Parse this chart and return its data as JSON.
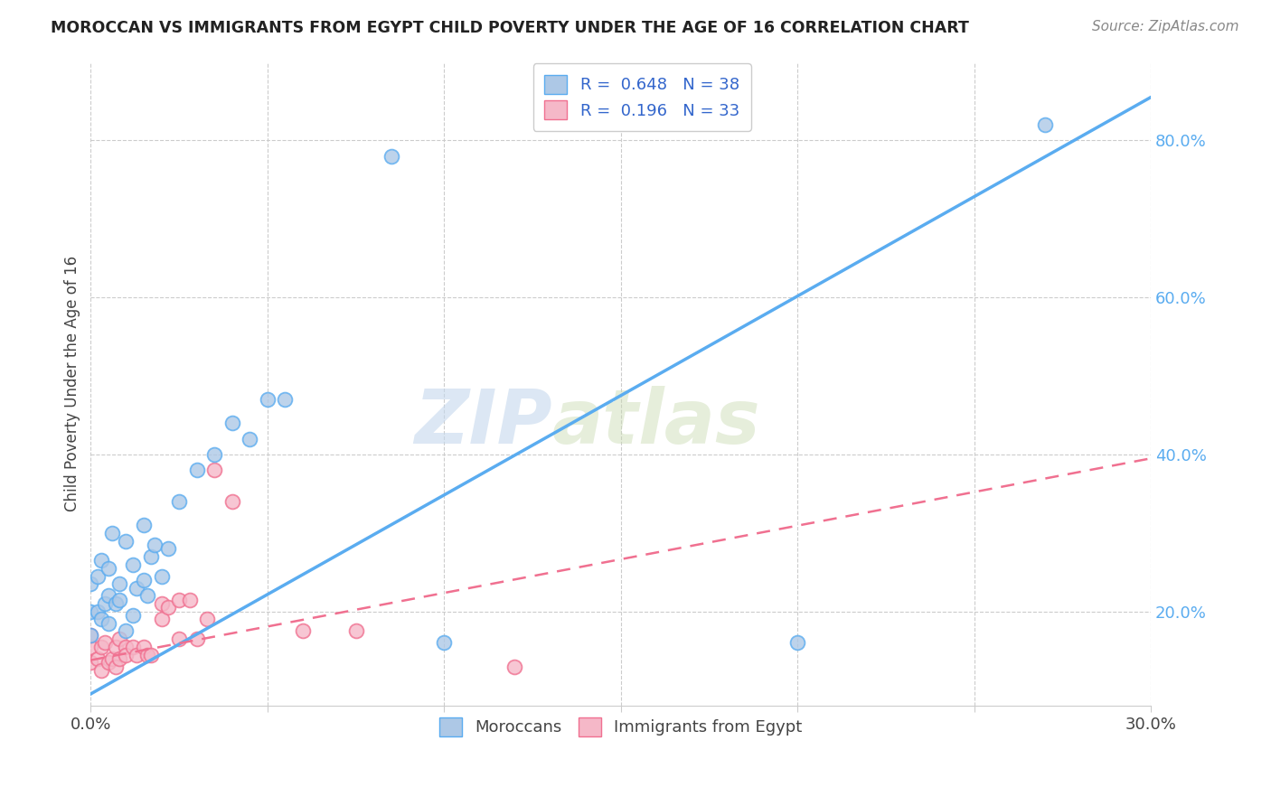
{
  "title": "MOROCCAN VS IMMIGRANTS FROM EGYPT CHILD POVERTY UNDER THE AGE OF 16 CORRELATION CHART",
  "source": "Source: ZipAtlas.com",
  "ylabel": "Child Poverty Under the Age of 16",
  "xlim": [
    0.0,
    0.3
  ],
  "ylim": [
    0.08,
    0.9
  ],
  "xticks": [
    0.0,
    0.05,
    0.1,
    0.15,
    0.2,
    0.25,
    0.3
  ],
  "ytick_right_values": [
    0.2,
    0.4,
    0.6,
    0.8
  ],
  "ytick_right_labels": [
    "20.0%",
    "40.0%",
    "60.0%",
    "80.0%"
  ],
  "r_moroccan": 0.648,
  "n_moroccan": 38,
  "r_egypt": 0.196,
  "n_egypt": 33,
  "color_moroccan": "#adc8e6",
  "color_egypt": "#f5b8c8",
  "line_moroccan": "#5aacf0",
  "line_egypt": "#f07090",
  "watermark_zip": "ZIP",
  "watermark_atlas": "atlas",
  "legend_labels": [
    "Moroccans",
    "Immigrants from Egypt"
  ],
  "moroccan_line_x": [
    0.0,
    0.3
  ],
  "moroccan_line_y": [
    0.095,
    0.855
  ],
  "egypt_line_x": [
    0.0,
    0.3
  ],
  "egypt_line_y": [
    0.138,
    0.395
  ],
  "moroccan_x": [
    0.0,
    0.0,
    0.0,
    0.002,
    0.002,
    0.003,
    0.003,
    0.004,
    0.005,
    0.005,
    0.005,
    0.006,
    0.007,
    0.008,
    0.008,
    0.01,
    0.01,
    0.012,
    0.012,
    0.013,
    0.015,
    0.015,
    0.016,
    0.017,
    0.018,
    0.02,
    0.022,
    0.025,
    0.03,
    0.035,
    0.04,
    0.045,
    0.05,
    0.055,
    0.085,
    0.1,
    0.2,
    0.27
  ],
  "moroccan_y": [
    0.17,
    0.2,
    0.235,
    0.2,
    0.245,
    0.19,
    0.265,
    0.21,
    0.185,
    0.22,
    0.255,
    0.3,
    0.21,
    0.215,
    0.235,
    0.175,
    0.29,
    0.195,
    0.26,
    0.23,
    0.24,
    0.31,
    0.22,
    0.27,
    0.285,
    0.245,
    0.28,
    0.34,
    0.38,
    0.4,
    0.44,
    0.42,
    0.47,
    0.47,
    0.78,
    0.16,
    0.16,
    0.82
  ],
  "egypt_x": [
    0.0,
    0.0,
    0.0,
    0.002,
    0.003,
    0.003,
    0.004,
    0.005,
    0.006,
    0.007,
    0.007,
    0.008,
    0.008,
    0.01,
    0.01,
    0.012,
    0.013,
    0.015,
    0.016,
    0.017,
    0.02,
    0.02,
    0.022,
    0.025,
    0.025,
    0.028,
    0.03,
    0.033,
    0.035,
    0.04,
    0.06,
    0.075,
    0.12
  ],
  "egypt_y": [
    0.135,
    0.155,
    0.17,
    0.14,
    0.125,
    0.155,
    0.16,
    0.135,
    0.14,
    0.13,
    0.155,
    0.14,
    0.165,
    0.155,
    0.145,
    0.155,
    0.145,
    0.155,
    0.145,
    0.145,
    0.19,
    0.21,
    0.205,
    0.165,
    0.215,
    0.215,
    0.165,
    0.19,
    0.38,
    0.34,
    0.175,
    0.175,
    0.13
  ]
}
